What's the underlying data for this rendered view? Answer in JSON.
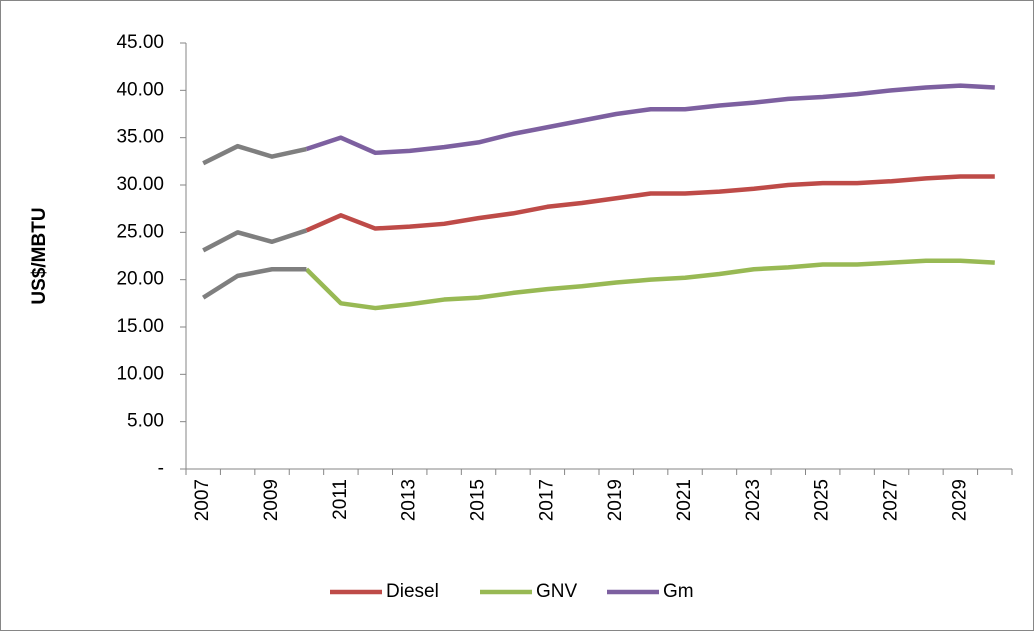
{
  "chart_data": {
    "type": "line",
    "y_label": "US$/MBTU",
    "x": [
      2007,
      2008,
      2009,
      2010,
      2011,
      2012,
      2013,
      2014,
      2015,
      2016,
      2017,
      2018,
      2019,
      2020,
      2021,
      2022,
      2023,
      2024,
      2025,
      2026,
      2027,
      2028,
      2029,
      2030
    ],
    "xticks": [
      2007,
      2009,
      2011,
      2013,
      2015,
      2017,
      2019,
      2021,
      2023,
      2025,
      2027,
      2029
    ],
    "ylim": [
      0,
      45
    ],
    "yticks": [
      {
        "value": 0,
        "label": "-"
      },
      {
        "value": 5,
        "label": "5.00"
      },
      {
        "value": 10,
        "label": "10.00"
      },
      {
        "value": 15,
        "label": "15.00"
      },
      {
        "value": 20,
        "label": "20.00"
      },
      {
        "value": 25,
        "label": "25.00"
      },
      {
        "value": 30,
        "label": "30.00"
      },
      {
        "value": 35,
        "label": "35.00"
      },
      {
        "value": 40,
        "label": "40.00"
      },
      {
        "value": 45,
        "label": "45.00"
      }
    ],
    "history": {
      "color": "#7f7f7f",
      "until": 2010
    },
    "legend": "bottom",
    "series": [
      {
        "name": "Diesel",
        "color": "#be4b48",
        "values": [
          23.1,
          25.0,
          24.0,
          25.2,
          26.8,
          25.4,
          25.6,
          25.9,
          26.5,
          27.0,
          27.7,
          28.1,
          28.6,
          29.1,
          29.1,
          29.3,
          29.6,
          30.0,
          30.2,
          30.2,
          30.4,
          30.7,
          30.9,
          30.9
        ]
      },
      {
        "name": "GNV",
        "color": "#98b954",
        "values": [
          18.1,
          20.4,
          21.1,
          21.1,
          17.5,
          17.0,
          17.4,
          17.9,
          18.1,
          18.6,
          19.0,
          19.3,
          19.7,
          20.0,
          20.2,
          20.6,
          21.1,
          21.3,
          21.6,
          21.6,
          21.8,
          22.0,
          22.0,
          21.8
        ]
      },
      {
        "name": "Gm",
        "color": "#7d60a0",
        "values": [
          32.3,
          34.1,
          33.0,
          33.8,
          35.0,
          33.4,
          33.6,
          34.0,
          34.5,
          35.4,
          36.1,
          36.8,
          37.5,
          38.0,
          38.0,
          38.4,
          38.7,
          39.1,
          39.3,
          39.6,
          40.0,
          40.3,
          40.5,
          40.3
        ]
      }
    ]
  }
}
